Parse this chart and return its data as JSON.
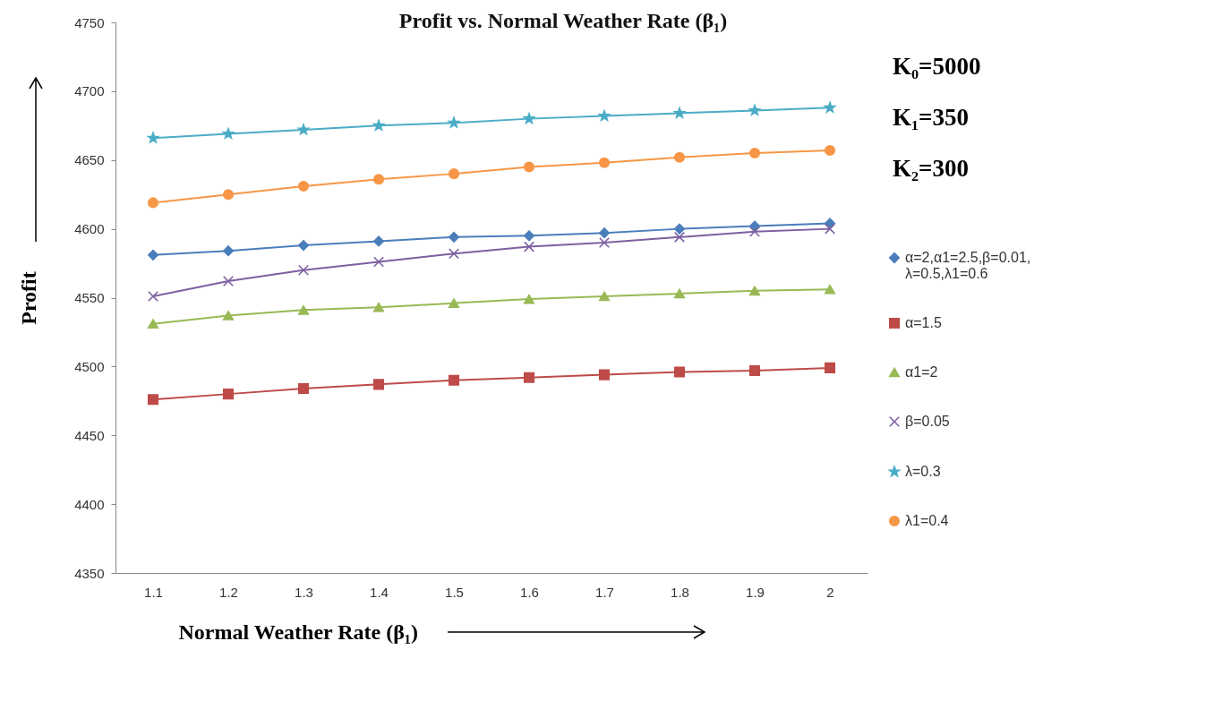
{
  "chart_data": {
    "type": "line",
    "title": "Profit vs. Normal Weather Rate (β₁)",
    "xlabel": "Normal Weather Rate (β₁)",
    "ylabel": "Profit",
    "categories": [
      "1.1",
      "1.2",
      "1.3",
      "1.4",
      "1.5",
      "1.6",
      "1.7",
      "1.8",
      "1.9",
      "2"
    ],
    "ylim": [
      4350,
      4750
    ],
    "yticks": [
      4350,
      4400,
      4450,
      4500,
      4550,
      4600,
      4650,
      4700,
      4750
    ],
    "grid": false,
    "legend": "right",
    "line_style": "solid",
    "annotations": [
      "K₀=5000",
      "K₁=350",
      "K₂=300"
    ],
    "series": [
      {
        "name": "α=2,α1=2.5,β=0.01, λ=0.5,λ1=0.6",
        "color": "#4a7ebb",
        "marker": "diamond",
        "values": [
          4581,
          4584,
          4588,
          4591,
          4594,
          4595,
          4597,
          4600,
          4602,
          4604
        ]
      },
      {
        "name": "α=1.5",
        "color": "#be4b48",
        "marker": "square",
        "values": [
          4476,
          4480,
          4484,
          4487,
          4490,
          4492,
          4494,
          4496,
          4497,
          4499
        ]
      },
      {
        "name": "α1=2",
        "color": "#98b954",
        "marker": "triangle",
        "values": [
          4531,
          4537,
          4541,
          4543,
          4546,
          4549,
          4551,
          4553,
          4555,
          4556
        ]
      },
      {
        "name": "β=0.05",
        "color": "#7d60a0",
        "marker": "cross",
        "values": [
          4551,
          4562,
          4570,
          4576,
          4582,
          4587,
          4590,
          4594,
          4598,
          4600
        ]
      },
      {
        "name": "λ=0.3",
        "color": "#4bacc6",
        "marker": "star",
        "values": [
          4666,
          4669,
          4672,
          4675,
          4677,
          4680,
          4682,
          4684,
          4686,
          4688
        ]
      },
      {
        "name": "λ1=0.4",
        "color": "#f79646",
        "marker": "circle",
        "values": [
          4619,
          4625,
          4631,
          4636,
          4640,
          4645,
          4648,
          4652,
          4655,
          4657
        ]
      }
    ]
  }
}
